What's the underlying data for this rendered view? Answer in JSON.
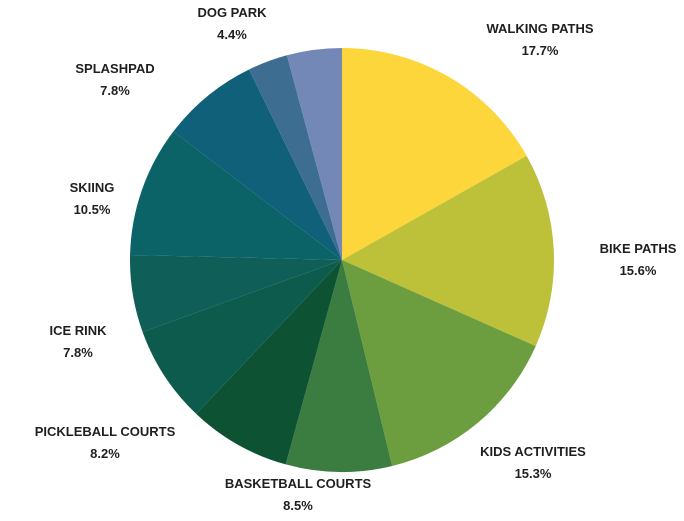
{
  "chart_data": {
    "type": "pie",
    "title": "",
    "start": "top",
    "direction": "clockwise",
    "slices": [
      {
        "label": "WALKING PATHS",
        "value": 17.7,
        "value_label": "17.7%",
        "color": "#FCD63A"
      },
      {
        "label": "BIKE PATHS",
        "value": 15.6,
        "value_label": "15.6%",
        "color": "#BDC13A"
      },
      {
        "label": "KIDS ACTIVITIES",
        "value": 15.3,
        "value_label": "15.3%",
        "color": "#6C9E3F"
      },
      {
        "label": "BASKETBALL COURTS",
        "value": 8.5,
        "value_label": "8.5%",
        "color": "#3B7D41"
      },
      {
        "label": "PICKLEBALL COURTS",
        "value": 8.2,
        "value_label": "8.2%",
        "color": "#0E5234"
      },
      {
        "label": "ICE RINK",
        "value": 7.8,
        "value_label": "7.8%",
        "color": "#0D5B4C"
      },
      {
        "label": "",
        "value": 6.2,
        "value_label": "",
        "color": "#0F5F58"
      },
      {
        "label": "SKIING",
        "value": 10.5,
        "value_label": "10.5%",
        "color": "#0C6367"
      },
      {
        "label": "SPLASHPAD",
        "value": 7.8,
        "value_label": "7.8%",
        "color": "#0F6078"
      },
      {
        "label": "",
        "value": 3.2,
        "value_label": "",
        "color": "#3E6D92"
      },
      {
        "label": "DOG PARK",
        "value": 4.4,
        "value_label": "4.4%",
        "color": "#7488B8"
      }
    ]
  }
}
